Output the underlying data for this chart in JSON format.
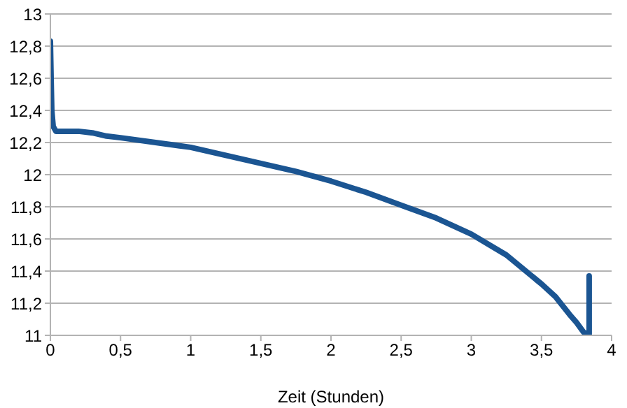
{
  "chart_data": {
    "type": "line",
    "xlabel": "Zeit (Stunden)",
    "xlim": [
      0,
      4
    ],
    "xticks": [
      0,
      {
        "value": 0.5,
        "label": "0,5"
      },
      1,
      {
        "value": 1.5,
        "label": "1,5"
      },
      2,
      {
        "value": 2.5,
        "label": "2,5"
      },
      3,
      {
        "value": 3.5,
        "label": "3,5"
      },
      4
    ],
    "ylim": [
      11,
      13
    ],
    "yticks": [
      11,
      {
        "value": 11.2,
        "label": "11,2"
      },
      {
        "value": 11.4,
        "label": "11,4"
      },
      {
        "value": 11.6,
        "label": "11,6"
      },
      {
        "value": 11.8,
        "label": "11,8"
      },
      12,
      {
        "value": 12.2,
        "label": "12,2"
      },
      {
        "value": 12.4,
        "label": "12,4"
      },
      {
        "value": 12.6,
        "label": "12,6"
      },
      {
        "value": 12.8,
        "label": "12,8"
      },
      13
    ],
    "grid": "y",
    "marker": "none",
    "line_style": "solid",
    "series": [
      {
        "color": "#1b5592",
        "x": [
          0,
          0.005,
          0.01,
          0.02,
          0.04,
          0.1,
          0.2,
          0.3,
          0.4,
          0.5,
          0.75,
          1,
          1.25,
          1.5,
          1.75,
          2,
          2.25,
          2.5,
          2.75,
          3,
          3.25,
          3.5,
          3.6,
          3.7,
          3.75,
          3.8,
          3.84,
          3.84
        ],
        "values": [
          12.83,
          12.6,
          12.4,
          12.3,
          12.27,
          12.27,
          12.27,
          12.26,
          12.24,
          12.23,
          12.2,
          12.17,
          12.12,
          12.07,
          12.02,
          11.96,
          11.89,
          11.81,
          11.73,
          11.63,
          11.5,
          11.32,
          11.24,
          11.13,
          11.08,
          11.02,
          11.0,
          11.37
        ]
      }
    ]
  }
}
